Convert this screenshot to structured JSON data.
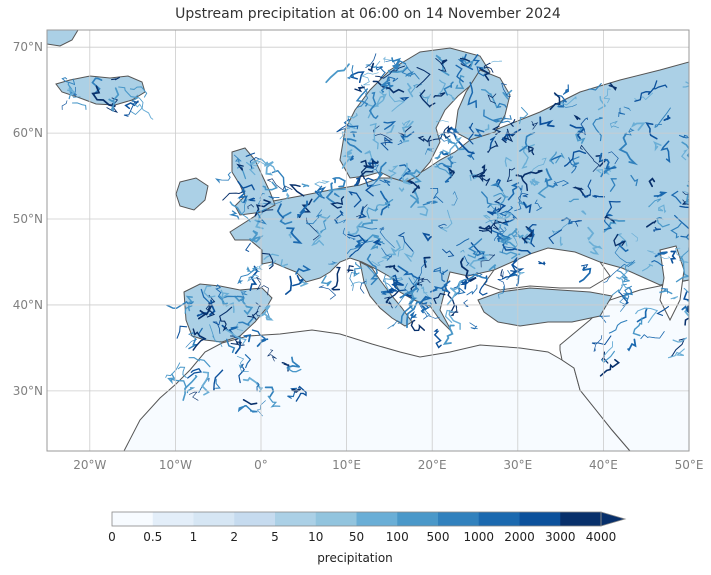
{
  "title": "Upstream precipitation at 06:00 on 14 November 2024",
  "map": {
    "lon_range": [
      -25,
      50
    ],
    "lat_range": [
      23,
      72
    ],
    "lon_ticks": [
      {
        "value": -20,
        "label": "20°W"
      },
      {
        "value": -10,
        "label": "10°W"
      },
      {
        "value": 0,
        "label": "0°"
      },
      {
        "value": 10,
        "label": "10°E"
      },
      {
        "value": 20,
        "label": "20°E"
      },
      {
        "value": 30,
        "label": "30°E"
      },
      {
        "value": 40,
        "label": "40°E"
      },
      {
        "value": 50,
        "label": "50°E"
      }
    ],
    "lat_ticks": [
      {
        "value": 30,
        "label": "30°N"
      },
      {
        "value": 40,
        "label": "40°N"
      },
      {
        "value": 50,
        "label": "50°N"
      },
      {
        "value": 60,
        "label": "60°N"
      },
      {
        "value": 70,
        "label": "70°N"
      }
    ],
    "gridlines": true,
    "coastline_color": "#555555",
    "land_background_color": "#f7fbff"
  },
  "colorbar": {
    "label": "precipitation",
    "levels": [
      "0",
      "0.5",
      "1",
      "2",
      "5",
      "10",
      "50",
      "100",
      "500",
      "1000",
      "2000",
      "3000",
      "4000"
    ],
    "colors": [
      "#f7fbff",
      "#e3eef9",
      "#d6e6f4",
      "#c6dbef",
      "#abd0e6",
      "#92c4de",
      "#6aaed6",
      "#4a98c9",
      "#3181bd",
      "#1b69af",
      "#0c519c",
      "#08306b"
    ],
    "extend": "max"
  }
}
